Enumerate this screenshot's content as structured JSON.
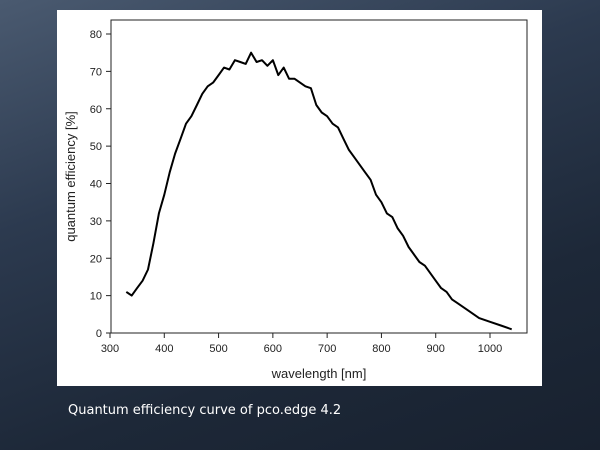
{
  "caption": "Quantum efficiency curve of pco.edge 4.2",
  "chart_data": {
    "type": "line",
    "title": "",
    "xlabel": "wavelength [nm]",
    "ylabel": "quantum efficiency [%]",
    "xlim": [
      300,
      1050
    ],
    "ylim": [
      0,
      80
    ],
    "xticks": [
      300,
      400,
      500,
      600,
      700,
      800,
      900,
      1000
    ],
    "yticks": [
      0,
      10,
      20,
      30,
      40,
      50,
      60,
      70,
      80
    ],
    "grid": false,
    "series": [
      {
        "name": "pco.edge 4.2",
        "color": "#000000",
        "x": [
          330,
          340,
          350,
          360,
          370,
          380,
          390,
          400,
          410,
          420,
          430,
          440,
          450,
          460,
          470,
          480,
          490,
          500,
          510,
          520,
          530,
          540,
          550,
          560,
          570,
          580,
          590,
          600,
          610,
          620,
          630,
          640,
          650,
          660,
          670,
          680,
          690,
          700,
          710,
          720,
          730,
          740,
          750,
          760,
          770,
          780,
          790,
          800,
          810,
          820,
          830,
          840,
          850,
          860,
          870,
          880,
          890,
          900,
          910,
          920,
          930,
          940,
          960,
          980,
          1000,
          1020,
          1040
        ],
        "y": [
          11,
          10,
          12,
          14,
          17,
          24,
          32,
          37,
          43,
          48,
          52,
          56,
          58,
          61,
          64,
          66,
          67,
          69,
          71,
          70.5,
          73,
          72.5,
          72,
          75,
          72.5,
          73,
          71.5,
          73,
          69,
          71,
          68,
          68,
          67,
          66,
          65.5,
          61,
          59,
          58,
          56,
          55,
          52,
          49,
          47,
          45,
          43,
          41,
          37,
          35,
          32,
          31,
          28,
          26,
          23,
          21,
          19,
          18,
          16,
          14,
          12,
          11,
          9,
          8,
          6,
          4,
          3,
          2,
          1
        ]
      }
    ]
  }
}
